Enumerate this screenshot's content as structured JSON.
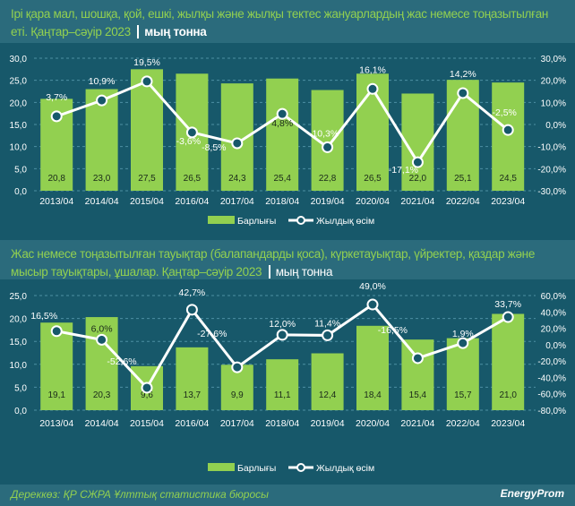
{
  "chart_data": [
    {
      "type": "bar+line",
      "title": "Ірі қара мал, шошқа, қой, ешкі, жылқы және жылқы тектес жануарлардың жас немесе тоңазытылған еті. Қаңтар–сәуір 2023",
      "unit": "мың тонна",
      "categories": [
        "2013/04",
        "2014/04",
        "2015/04",
        "2016/04",
        "2017/04",
        "2018/04",
        "2019/04",
        "2020/04",
        "2021/04",
        "2022/04",
        "2023/04"
      ],
      "series": [
        {
          "name": "Барлығы",
          "type": "bar",
          "axis": "left",
          "values": [
            20.8,
            23.0,
            27.5,
            26.5,
            24.3,
            25.4,
            22.8,
            26.5,
            22.0,
            25.1,
            24.5
          ],
          "labels": [
            "20,8",
            "23,0",
            "27,5",
            "26,5",
            "24,3",
            "25,4",
            "22,8",
            "26,5",
            "22,0",
            "25,1",
            "24,5"
          ]
        },
        {
          "name": "Жылдық өсім",
          "type": "line",
          "axis": "right",
          "values": [
            3.7,
            10.9,
            19.5,
            -3.6,
            -8.5,
            4.8,
            -10.3,
            16.1,
            -17.1,
            14.2,
            -2.5
          ],
          "labels": [
            "3,7%",
            "10,9%",
            "19,5%",
            "-3,6%",
            "-8,5%",
            "4,8%",
            "-10,3%",
            "16,1%",
            "-17,1%",
            "14,2%",
            "-2,5%"
          ]
        }
      ],
      "ylim": [
        0,
        30
      ],
      "yticks": [
        "0,0",
        "5,0",
        "10,0",
        "15,0",
        "20,0",
        "25,0",
        "30,0"
      ],
      "y2lim": [
        -30,
        30
      ],
      "y2ticks": [
        "-30,0%",
        "-20,0%",
        "-10,0%",
        "0,0%",
        "10,0%",
        "20,0%",
        "30,0%"
      ],
      "grid": true,
      "legend": "bottom"
    },
    {
      "type": "bar+line",
      "title": "Жас немесе тоңазытылған тауықтар (балапандарды қоса), күркетауықтар, үйректер, қаздар және мысыр тауықтары, ұшалар. Қаңтар–сәуір 2023",
      "unit": "мың тонна",
      "categories": [
        "2013/04",
        "2014/04",
        "2015/04",
        "2016/04",
        "2017/04",
        "2018/04",
        "2019/04",
        "2020/04",
        "2021/04",
        "2022/04",
        "2023/04"
      ],
      "series": [
        {
          "name": "Барлығы",
          "type": "bar",
          "axis": "left",
          "values": [
            19.1,
            20.3,
            9.6,
            13.7,
            9.9,
            11.1,
            12.4,
            18.4,
            15.4,
            15.7,
            21.0
          ],
          "labels": [
            "19,1",
            "20,3",
            "9,6",
            "13,7",
            "9,9",
            "11,1",
            "12,4",
            "18,4",
            "15,4",
            "15,7",
            "21,0"
          ]
        },
        {
          "name": "Жылдық өсім",
          "type": "line",
          "axis": "right",
          "values": [
            16.5,
            6.0,
            -52.6,
            42.7,
            -27.6,
            12.0,
            11.4,
            49.0,
            -16.5,
            1.9,
            33.7
          ],
          "labels": [
            "16,5%",
            "6,0%",
            "-52,6%",
            "42,7%",
            "-27,6%",
            "12,0%",
            "11,4%",
            "49,0%",
            "-16,5%",
            "1,9%",
            "33,7%"
          ]
        }
      ],
      "ylim": [
        0,
        25
      ],
      "yticks": [
        "0,0",
        "5,0",
        "10,0",
        "15,0",
        "20,0",
        "25,0"
      ],
      "y2lim": [
        -80,
        60
      ],
      "y2ticks": [
        "-80,0%",
        "-60,0%",
        "-40,0%",
        "-20,0%",
        "0,0%",
        "20,0%",
        "40,0%",
        "60,0%"
      ],
      "grid": true,
      "legend": "bottom"
    }
  ],
  "footer": {
    "source": "Дереккөз: ҚР СЖРА Ұлттық статистика бюросы",
    "logo": "EnergyProm"
  },
  "colors": {
    "background": "#17586a",
    "band": "#2b6b7c",
    "bar": "#92d050",
    "line": "#ffffff",
    "grid": "#4d8fa3"
  }
}
